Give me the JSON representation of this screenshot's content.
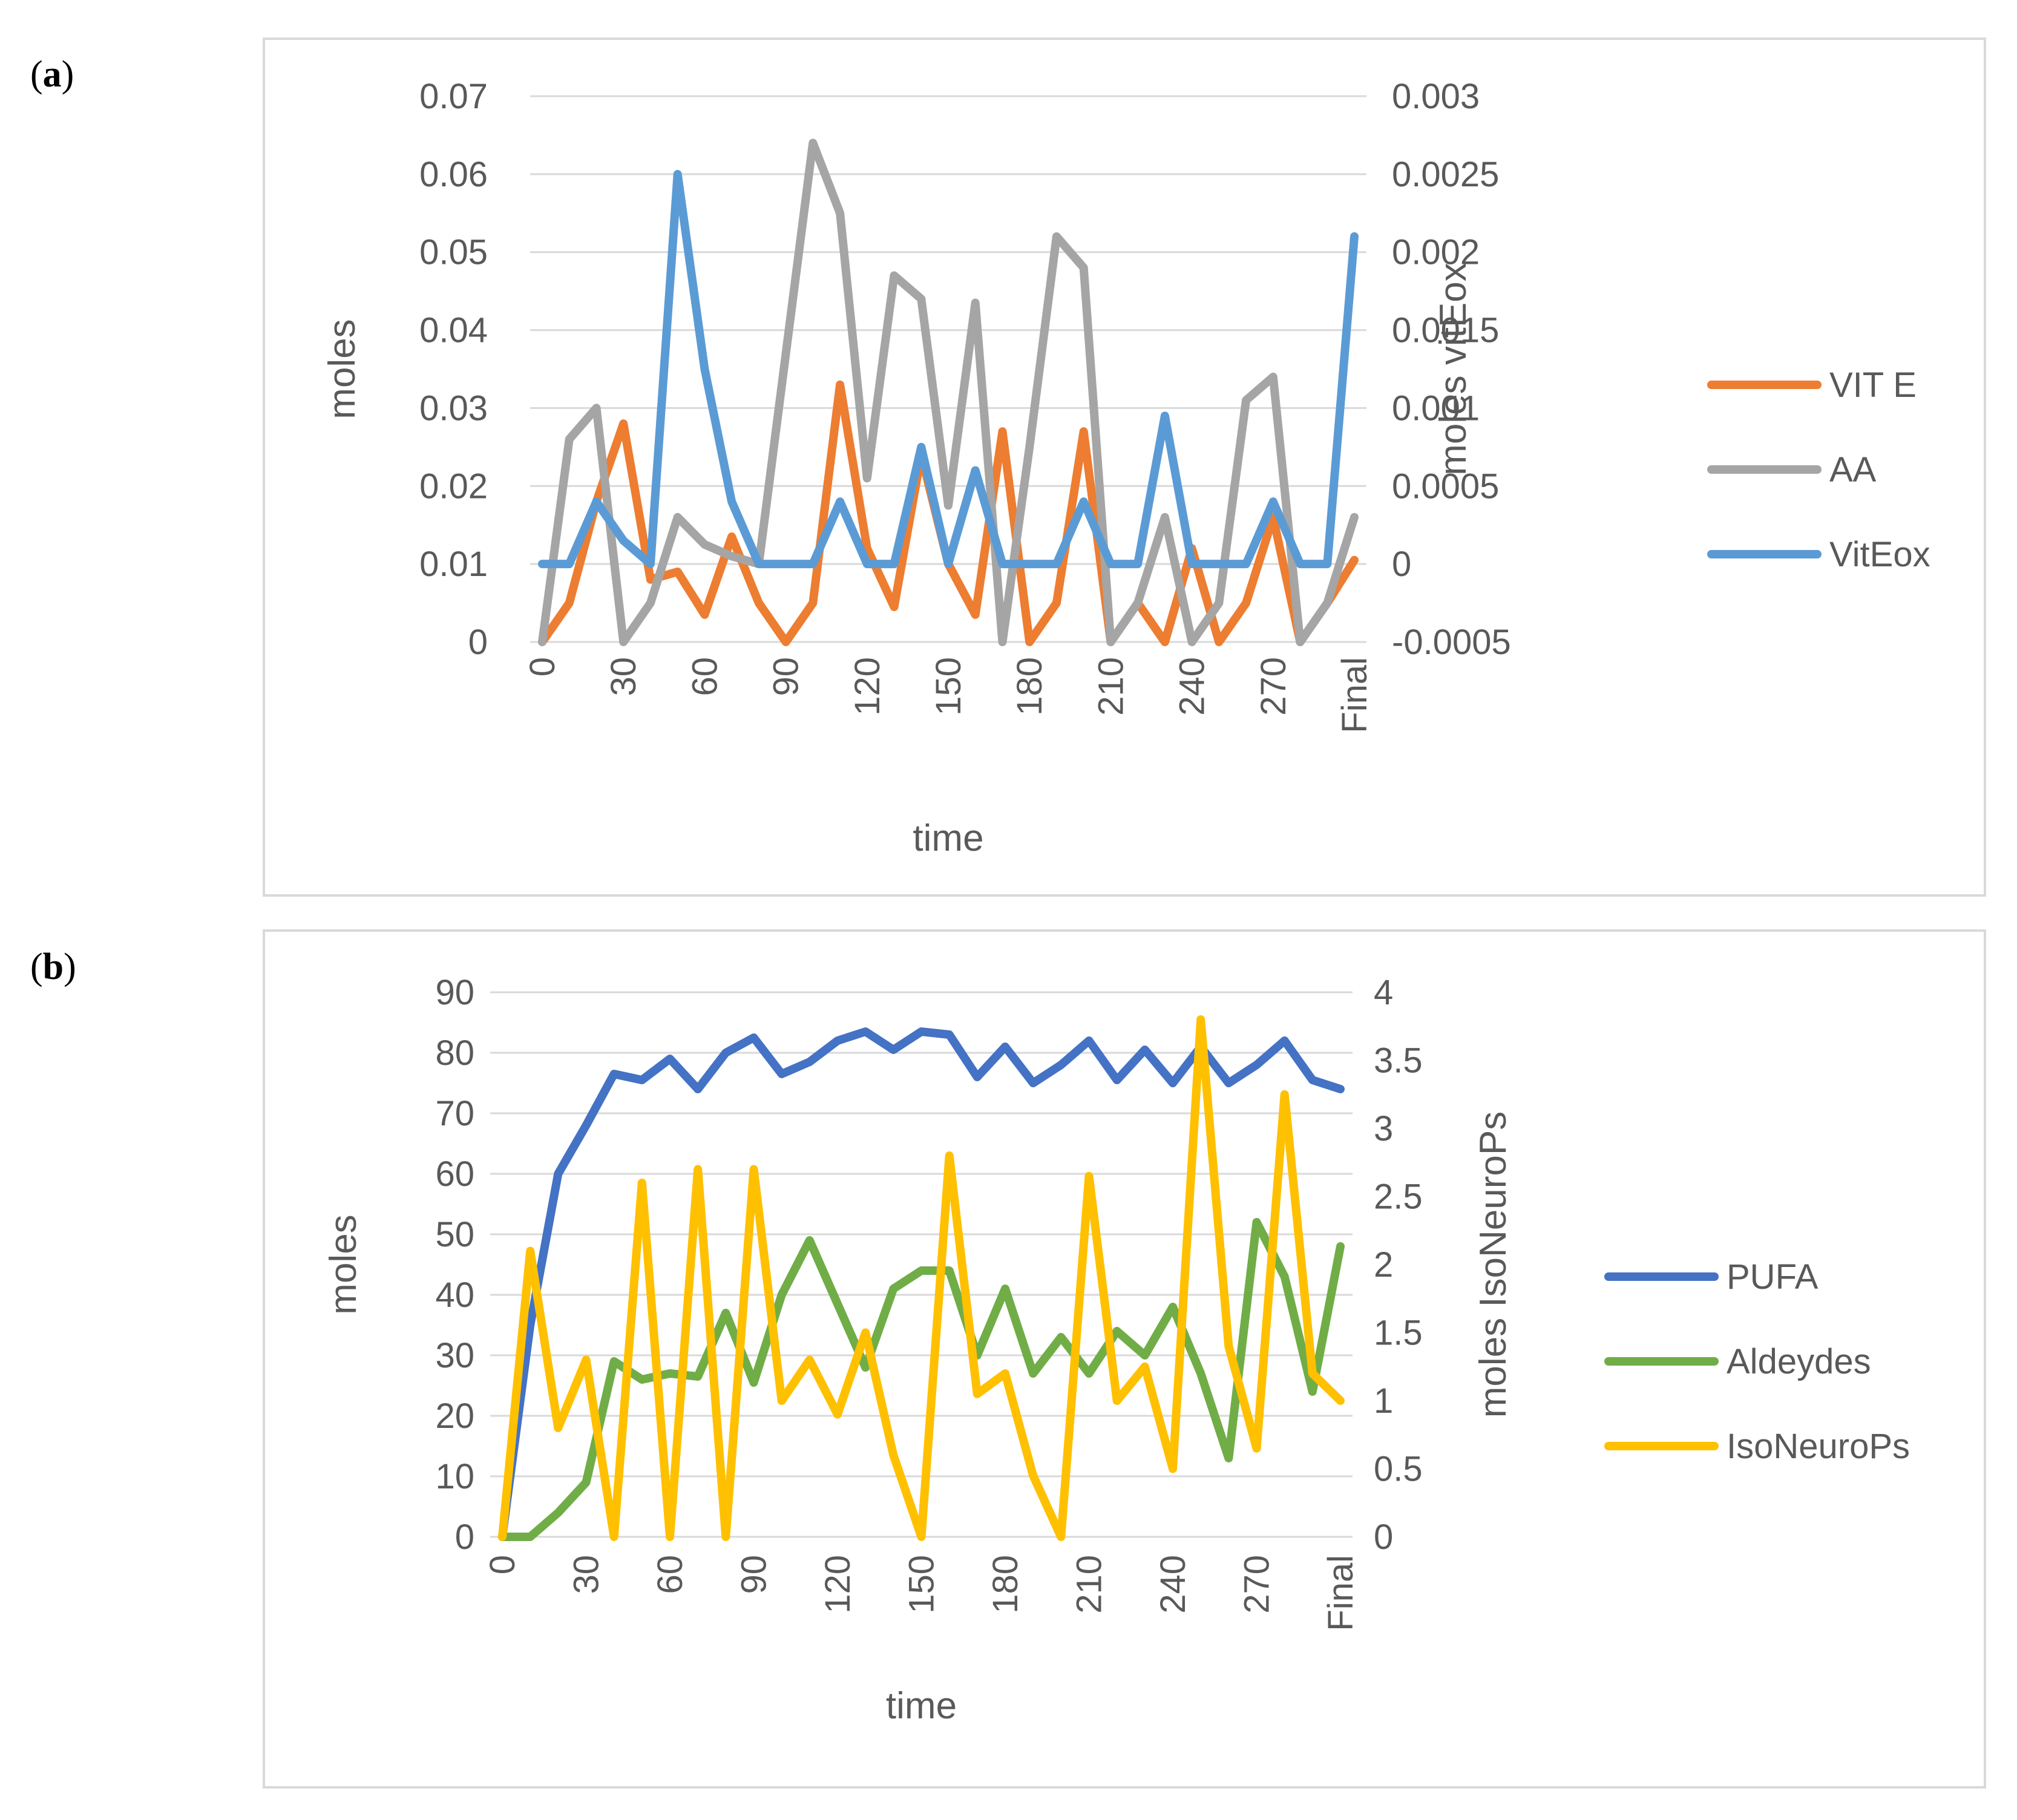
{
  "panels": {
    "a": {
      "letter": "a"
    },
    "b": {
      "letter": "b"
    }
  },
  "chart_data": [
    {
      "type": "line",
      "panel": "a",
      "title": "",
      "xlabel": "time",
      "ylabel": "moles",
      "y2label": "moles vitEox",
      "categories": [
        "0",
        "10",
        "20",
        "30",
        "40",
        "50",
        "60",
        "70",
        "80",
        "90",
        "100",
        "110",
        "120",
        "130",
        "140",
        "150",
        "160",
        "170",
        "180",
        "190",
        "200",
        "210",
        "220",
        "230",
        "240",
        "250",
        "260",
        "270",
        "280",
        "290",
        "Final"
      ],
      "x_tick_labels": [
        "0",
        "",
        "",
        "30",
        "",
        "",
        "60",
        "",
        "",
        "90",
        "",
        "",
        "120",
        "",
        "",
        "150",
        "",
        "",
        "180",
        "",
        "",
        "210",
        "",
        "",
        "240",
        "",
        "",
        "270",
        "",
        "",
        "Final"
      ],
      "ylim": [
        0,
        0.07
      ],
      "yticks": [
        "0",
        "0.01",
        "0.02",
        "0.03",
        "0.04",
        "0.05",
        "0.06",
        "0.07"
      ],
      "y2lim": [
        -0.0005,
        0.003
      ],
      "y2ticks": [
        "-0.0005",
        "0",
        "0.0005",
        "0.001",
        "0.0015",
        "0.002",
        "0.0025",
        "0.003"
      ],
      "legend_position": "right",
      "series": [
        {
          "name": "VIT E",
          "axis": "left",
          "color": "#ed7d31",
          "values": [
            0,
            0.005,
            0.018,
            0.028,
            0.008,
            0.009,
            0.0035,
            0.0135,
            0.005,
            0,
            0.005,
            0.033,
            0.012,
            0.0045,
            0.024,
            0.01,
            0.0035,
            0.027,
            0,
            0.005,
            0.027,
            0,
            0.005,
            0,
            0.012,
            0,
            0.005,
            0.016,
            0,
            0.005,
            0.0105
          ]
        },
        {
          "name": "AA",
          "axis": "left",
          "color": "#a5a5a5",
          "values": [
            0,
            0.026,
            0.03,
            0,
            0.005,
            0.016,
            0.0125,
            0.011,
            0.01,
            0.037,
            0.064,
            0.055,
            0.021,
            0.047,
            0.044,
            0.0175,
            0.0435,
            0,
            0.025,
            0.052,
            0.048,
            0,
            0.005,
            0.016,
            0,
            0.005,
            0.031,
            0.034,
            0,
            0.005,
            0.016
          ]
        },
        {
          "name": "VitEox",
          "axis": "right",
          "color": "#5b9bd5",
          "values": [
            0,
            0,
            0.0004,
            0.00015,
            0,
            0.0025,
            0.00125,
            0.0004,
            0,
            0,
            0,
            0.0004,
            0,
            0,
            0.00075,
            0,
            0.0006,
            0,
            0,
            0,
            0.0004,
            0,
            0,
            0.00095,
            0,
            0,
            0,
            0.0004,
            0,
            0,
            0.0021
          ]
        }
      ]
    },
    {
      "type": "line",
      "panel": "b",
      "title": "",
      "xlabel": "time",
      "ylabel": "moles",
      "y2label": "moles IsoNeuroPs",
      "categories": [
        "0",
        "10",
        "20",
        "30",
        "40",
        "50",
        "60",
        "70",
        "80",
        "90",
        "100",
        "110",
        "120",
        "130",
        "140",
        "150",
        "160",
        "170",
        "180",
        "190",
        "200",
        "210",
        "220",
        "230",
        "240",
        "250",
        "260",
        "270",
        "280",
        "290",
        "Final"
      ],
      "x_tick_labels": [
        "0",
        "",
        "",
        "30",
        "",
        "",
        "60",
        "",
        "",
        "90",
        "",
        "",
        "120",
        "",
        "",
        "150",
        "",
        "",
        "180",
        "",
        "",
        "210",
        "",
        "",
        "240",
        "",
        "",
        "270",
        "",
        "",
        "Final"
      ],
      "ylim": [
        0,
        90
      ],
      "yticks": [
        "0",
        "10",
        "20",
        "30",
        "40",
        "50",
        "60",
        "70",
        "80",
        "90"
      ],
      "y2lim": [
        0,
        4
      ],
      "y2ticks": [
        "0",
        "0.5",
        "1",
        "1.5",
        "2",
        "2.5",
        "3",
        "3.5",
        "4"
      ],
      "legend_position": "right",
      "series": [
        {
          "name": "PUFA",
          "axis": "left",
          "color": "#4472c4",
          "values": [
            0,
            35,
            60,
            68,
            76.5,
            75.5,
            79,
            74,
            80,
            82.5,
            76.5,
            78.5,
            82,
            83.5,
            80.5,
            83.5,
            83,
            76,
            81,
            75,
            78,
            82,
            75.5,
            80.5,
            75,
            81,
            75,
            78,
            82,
            75.5,
            74
          ]
        },
        {
          "name": "Aldeydes",
          "axis": "left",
          "color": "#70ad47",
          "values": [
            0,
            0,
            4,
            9,
            29,
            26,
            27,
            26.5,
            37,
            25.5,
            40,
            49,
            38.5,
            28,
            41,
            44,
            44,
            30,
            41,
            27,
            33,
            27,
            34,
            30,
            38,
            27,
            13,
            52,
            43,
            24,
            48
          ]
        },
        {
          "name": "IsoNeuroPs",
          "axis": "right",
          "color": "#ffc000",
          "values": [
            0,
            2.1,
            0.8,
            1.3,
            0,
            2.6,
            0,
            2.7,
            0,
            2.7,
            1,
            1.3,
            0.9,
            1.5,
            0.6,
            0,
            2.8,
            1.05,
            1.2,
            0.45,
            0,
            2.65,
            1,
            1.25,
            0.5,
            3.8,
            1.4,
            0.65,
            3.25,
            1.2,
            1
          ]
        }
      ]
    }
  ]
}
